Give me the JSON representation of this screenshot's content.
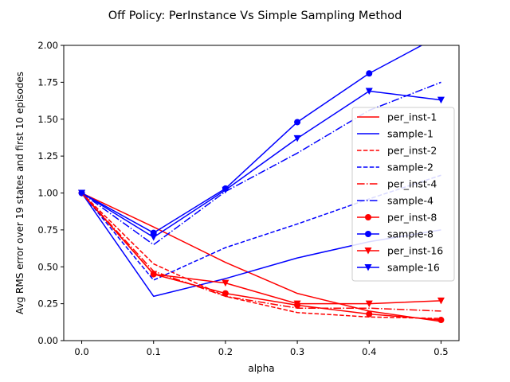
{
  "chart_data": {
    "type": "line",
    "title": "Off Policy: PerInstance Vs Simple Sampling Method",
    "xlabel": "alpha",
    "ylabel": "Avg RMS error over 19 states and first 10 episodes",
    "xlim": [
      -0.025,
      0.525
    ],
    "ylim": [
      0.0,
      2.0
    ],
    "x_ticks": [
      "0.0",
      "0.1",
      "0.2",
      "0.3",
      "0.4",
      "0.5"
    ],
    "y_ticks": [
      "0.00",
      "0.25",
      "0.50",
      "0.75",
      "1.00",
      "1.25",
      "1.50",
      "1.75",
      "2.00"
    ],
    "grid": false,
    "legend_position": "center-right",
    "x": [
      0.0,
      0.1,
      0.2,
      0.3,
      0.4,
      0.5
    ],
    "series": [
      {
        "name": "per_inst-1",
        "color": "#ff0000",
        "line": "solid",
        "marker": "none",
        "values": [
          1.0,
          0.77,
          0.53,
          0.32,
          0.2,
          0.13
        ]
      },
      {
        "name": "sample-1",
        "color": "#0000ff",
        "line": "solid",
        "marker": "none",
        "values": [
          1.0,
          0.3,
          0.42,
          0.56,
          0.67,
          0.75
        ]
      },
      {
        "name": "per_inst-2",
        "color": "#ff0000",
        "line": "dashed",
        "marker": "none",
        "values": [
          1.0,
          0.52,
          0.3,
          0.19,
          0.16,
          0.15
        ]
      },
      {
        "name": "sample-2",
        "color": "#0000ff",
        "line": "dashed",
        "marker": "none",
        "values": [
          1.0,
          0.41,
          0.63,
          0.79,
          0.96,
          1.12
        ]
      },
      {
        "name": "per_inst-4",
        "color": "#ff0000",
        "line": "dashdot",
        "marker": "none",
        "values": [
          1.0,
          0.47,
          0.3,
          0.22,
          0.22,
          0.2
        ]
      },
      {
        "name": "sample-4",
        "color": "#0000ff",
        "line": "dashdot",
        "marker": "none",
        "values": [
          1.0,
          0.65,
          1.01,
          1.27,
          1.56,
          1.75
        ]
      },
      {
        "name": "per_inst-8",
        "color": "#ff0000",
        "line": "solid",
        "marker": "circle",
        "values": [
          1.0,
          0.45,
          0.32,
          0.24,
          0.18,
          0.14
        ]
      },
      {
        "name": "sample-8",
        "color": "#0000ff",
        "line": "solid",
        "marker": "circle",
        "values": [
          1.0,
          0.73,
          1.03,
          1.48,
          1.81,
          2.07
        ]
      },
      {
        "name": "per_inst-16",
        "color": "#ff0000",
        "line": "solid",
        "marker": "triangle-down",
        "values": [
          1.0,
          0.45,
          0.39,
          0.25,
          0.25,
          0.27
        ]
      },
      {
        "name": "sample-16",
        "color": "#0000ff",
        "line": "solid",
        "marker": "triangle-down",
        "values": [
          1.0,
          0.7,
          1.02,
          1.37,
          1.69,
          1.63
        ]
      }
    ]
  }
}
